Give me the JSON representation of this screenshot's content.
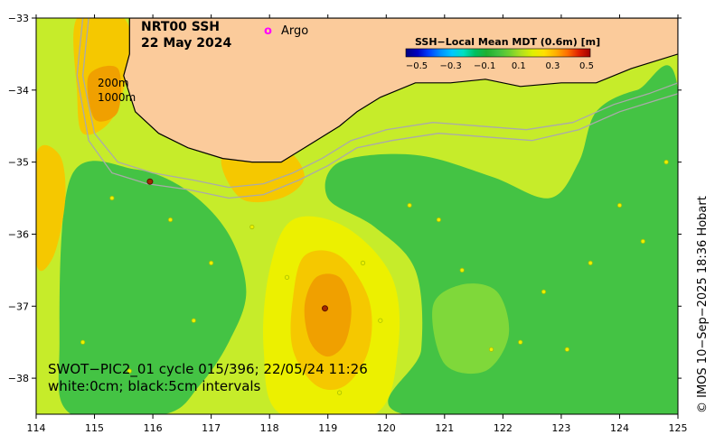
{
  "title": {
    "line1": "NRT00 SSH",
    "line2": "22 May 2024"
  },
  "legend": {
    "marker_symbol": "o",
    "marker_label": "Argo",
    "marker_color": "#ff00ff"
  },
  "colorbar": {
    "title": "SSH−Local Mean MDT (0.6m) [m]",
    "ticks": [
      "−0.5",
      "−0.3",
      "−0.1",
      "0.1",
      "0.3",
      "0.5"
    ],
    "colors": [
      "#000080",
      "#0000c0",
      "#0040ff",
      "#0090ff",
      "#00c8ff",
      "#00e0c0",
      "#00c060",
      "#20b030",
      "#40c040",
      "#70d030",
      "#b0e020",
      "#e0f000",
      "#ffe000",
      "#ffb000",
      "#ff7000",
      "#e02000",
      "#a00000"
    ]
  },
  "contour_labels": {
    "shallow": "200m",
    "deep": "1000m"
  },
  "annotation": {
    "line1": "SWOT−PIC2_01 cycle 015/396; 22/05/24 11:26",
    "line2": "white:0cm; black:5cm intervals"
  },
  "credit": "© IMOS 10−Sep−2025 18:36 Hobart",
  "axes": {
    "x_ticks": [
      "114",
      "115",
      "116",
      "117",
      "118",
      "119",
      "120",
      "121",
      "122",
      "123",
      "124",
      "125"
    ],
    "y_ticks": [
      "−33",
      "−34",
      "−35",
      "−36",
      "−37",
      "−38"
    ]
  },
  "colors": {
    "land": "#fbcb9b",
    "ssh_green": "#44c344",
    "ssh_light_green": "#7fd83a",
    "ssh_yellow_green": "#c6ec2a",
    "ssh_yellow": "#ecf000",
    "ssh_gold": "#f5c800",
    "ssh_orange": "#f0a000",
    "ssh_dark_orange": "#e88800",
    "coastline": "#000000",
    "bathy": "#aaaaaa"
  },
  "map": {
    "lon_range": [
      114,
      125
    ],
    "lat_range": [
      -38.5,
      -33
    ],
    "ssh_fields": [
      {
        "color_key": "ssh_yellow_green",
        "shape": [
          [
            114,
            -33
          ],
          [
            125,
            -33
          ],
          [
            125,
            -38.5
          ],
          [
            114,
            -38.5
          ]
        ]
      },
      {
        "color_key": "ssh_green",
        "shape": [
          [
            114.6,
            -35.2
          ],
          [
            115.7,
            -35.1
          ],
          [
            116.6,
            -35.4
          ],
          [
            117.3,
            -36.0
          ],
          [
            117.6,
            -36.8
          ],
          [
            117.3,
            -37.5
          ],
          [
            116.8,
            -38.1
          ],
          [
            116.2,
            -38.5
          ],
          [
            114.6,
            -38.5
          ],
          [
            114.4,
            -37.5
          ]
        ]
      },
      {
        "color_key": "ssh_green",
        "shape": [
          [
            119.2,
            -35.0
          ],
          [
            120.5,
            -34.9
          ],
          [
            121.8,
            -35.2
          ],
          [
            122.8,
            -35.5
          ],
          [
            123.3,
            -35.0
          ],
          [
            123.6,
            -34.3
          ],
          [
            124.3,
            -34.0
          ],
          [
            125,
            -34.0
          ],
          [
            125,
            -38.5
          ],
          [
            120.3,
            -38.5
          ],
          [
            120.6,
            -37.6
          ],
          [
            120.5,
            -36.5
          ],
          [
            119.8,
            -35.9
          ],
          [
            119.0,
            -35.5
          ]
        ]
      },
      {
        "color_key": "ssh_light_green",
        "shape": [
          [
            120.8,
            -37.0
          ],
          [
            121.3,
            -36.7
          ],
          [
            121.9,
            -36.8
          ],
          [
            122.1,
            -37.4
          ],
          [
            121.7,
            -37.9
          ],
          [
            121.0,
            -37.8
          ]
        ]
      },
      {
        "color_key": "ssh_yellow",
        "shape": [
          [
            118.4,
            -35.8
          ],
          [
            119.3,
            -35.9
          ],
          [
            120.1,
            -36.6
          ],
          [
            120.2,
            -37.6
          ],
          [
            119.8,
            -38.5
          ],
          [
            118.2,
            -38.5
          ],
          [
            117.9,
            -37.6
          ],
          [
            118.0,
            -36.5
          ]
        ]
      },
      {
        "color_key": "ssh_gold",
        "shape": [
          [
            118.6,
            -36.3
          ],
          [
            119.2,
            -36.3
          ],
          [
            119.7,
            -36.9
          ],
          [
            119.7,
            -37.6
          ],
          [
            119.3,
            -38.1
          ],
          [
            118.8,
            -38.1
          ],
          [
            118.4,
            -37.6
          ],
          [
            118.4,
            -36.9
          ]
        ]
      },
      {
        "color_key": "ssh_orange",
        "shape": [
          [
            118.8,
            -36.6
          ],
          [
            119.2,
            -36.6
          ],
          [
            119.4,
            -37.0
          ],
          [
            119.3,
            -37.5
          ],
          [
            119.0,
            -37.7
          ],
          [
            118.7,
            -37.5
          ],
          [
            118.6,
            -37.0
          ]
        ]
      },
      {
        "color_key": "ssh_gold",
        "shape": [
          [
            114.7,
            -33.0
          ],
          [
            115.5,
            -33.0
          ],
          [
            115.6,
            -33.6
          ],
          [
            115.3,
            -34.4
          ],
          [
            114.8,
            -34.6
          ],
          [
            114.7,
            -34.0
          ]
        ]
      },
      {
        "color_key": "ssh_orange",
        "shape": [
          [
            114.9,
            -33.8
          ],
          [
            115.4,
            -33.7
          ],
          [
            115.4,
            -34.3
          ],
          [
            115.0,
            -34.4
          ]
        ]
      },
      {
        "color_key": "ssh_gold",
        "shape": [
          [
            114,
            -34.9
          ],
          [
            114.4,
            -34.9
          ],
          [
            114.5,
            -35.5
          ],
          [
            114.3,
            -36.3
          ],
          [
            114,
            -36.4
          ]
        ]
      },
      {
        "color_key": "ssh_gold",
        "shape": [
          [
            117.2,
            -34.9
          ],
          [
            118.2,
            -34.8
          ],
          [
            118.6,
            -35.2
          ],
          [
            118.2,
            -35.5
          ],
          [
            117.5,
            -35.5
          ]
        ]
      }
    ],
    "land_shape": [
      [
        115.6,
        -33
      ],
      [
        125,
        -33
      ],
      [
        125,
        -33.5
      ],
      [
        124.2,
        -33.7
      ],
      [
        123.6,
        -33.9
      ],
      [
        123.0,
        -33.9
      ],
      [
        122.3,
        -33.95
      ],
      [
        121.7,
        -33.85
      ],
      [
        121.1,
        -33.9
      ],
      [
        120.5,
        -33.9
      ],
      [
        119.9,
        -34.1
      ],
      [
        119.5,
        -34.3
      ],
      [
        119.2,
        -34.5
      ],
      [
        118.6,
        -34.8
      ],
      [
        118.2,
        -35.0
      ],
      [
        117.7,
        -35.0
      ],
      [
        117.2,
        -34.95
      ],
      [
        116.6,
        -34.8
      ],
      [
        116.1,
        -34.6
      ],
      [
        115.7,
        -34.3
      ],
      [
        115.5,
        -33.8
      ],
      [
        115.6,
        -33.5
      ]
    ],
    "bathy_200": [
      [
        114.9,
        -33
      ],
      [
        114.8,
        -33.8
      ],
      [
        115.0,
        -34.6
      ],
      [
        115.4,
        -35.0
      ],
      [
        116.0,
        -35.15
      ],
      [
        116.7,
        -35.25
      ],
      [
        117.3,
        -35.35
      ],
      [
        117.9,
        -35.3
      ],
      [
        118.4,
        -35.15
      ],
      [
        118.9,
        -34.95
      ],
      [
        119.4,
        -34.7
      ],
      [
        120.0,
        -34.55
      ],
      [
        120.8,
        -34.45
      ],
      [
        121.6,
        -34.5
      ],
      [
        122.4,
        -34.55
      ],
      [
        123.2,
        -34.45
      ],
      [
        123.9,
        -34.2
      ],
      [
        124.5,
        -34.05
      ],
      [
        125,
        -33.9
      ]
    ],
    "bathy_1000": [
      [
        114.8,
        -33
      ],
      [
        114.7,
        -33.8
      ],
      [
        114.9,
        -34.7
      ],
      [
        115.3,
        -35.15
      ],
      [
        115.9,
        -35.3
      ],
      [
        116.6,
        -35.38
      ],
      [
        117.3,
        -35.5
      ],
      [
        117.9,
        -35.45
      ],
      [
        118.5,
        -35.25
      ],
      [
        119.0,
        -35.05
      ],
      [
        119.5,
        -34.8
      ],
      [
        120.1,
        -34.7
      ],
      [
        120.9,
        -34.6
      ],
      [
        121.7,
        -34.65
      ],
      [
        122.5,
        -34.7
      ],
      [
        123.3,
        -34.55
      ],
      [
        124.0,
        -34.3
      ],
      [
        124.6,
        -34.15
      ],
      [
        125,
        -34.05
      ]
    ],
    "argo_floats": [
      [
        115.95,
        -35.27
      ],
      [
        118.95,
        -37.03
      ]
    ],
    "swot_points": [
      [
        114.8,
        -37.5
      ],
      [
        115.3,
        -35.5
      ],
      [
        116.3,
        -35.8
      ],
      [
        117.0,
        -36.4
      ],
      [
        117.7,
        -35.9
      ],
      [
        118.3,
        -36.6
      ],
      [
        119.6,
        -36.4
      ],
      [
        119.9,
        -37.2
      ],
      [
        120.4,
        -35.6
      ],
      [
        120.9,
        -35.8
      ],
      [
        121.3,
        -36.5
      ],
      [
        121.8,
        -37.6
      ],
      [
        122.3,
        -37.5
      ],
      [
        122.7,
        -36.8
      ],
      [
        123.1,
        -37.6
      ],
      [
        123.5,
        -36.4
      ],
      [
        124.0,
        -35.6
      ],
      [
        124.4,
        -36.1
      ],
      [
        124.8,
        -35.0
      ],
      [
        116.7,
        -37.2
      ],
      [
        115.6,
        -37.9
      ],
      [
        119.2,
        -38.2
      ]
    ]
  }
}
